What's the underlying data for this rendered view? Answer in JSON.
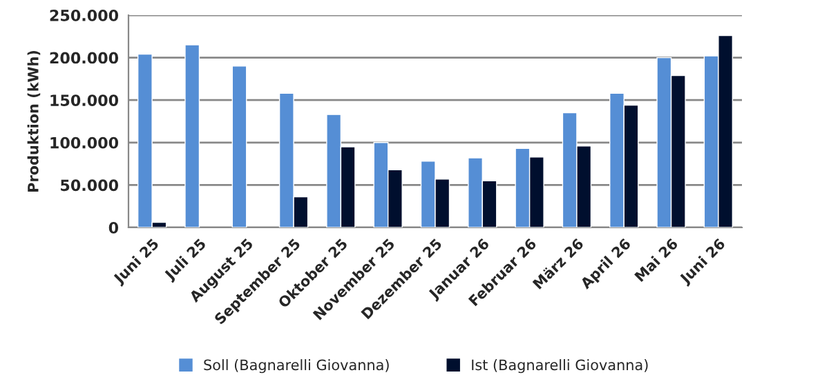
{
  "chart_data": {
    "type": "bar",
    "ylabel": "Produktion (kWh)",
    "categories": [
      "Juni 25",
      "Juli 25",
      "August 25",
      "September 25",
      "Oktober 25",
      "November 25",
      "Dezember 25",
      "Januar 26",
      "Februar 26",
      "März 26",
      "April 26",
      "Mai 26",
      "Juni 26"
    ],
    "series": [
      {
        "name": "Soll (Bagnarelli Giovanna)",
        "color": "#558ed5",
        "values": [
          204000,
          215000,
          190000,
          158000,
          133000,
          100000,
          78000,
          82000,
          93000,
          135000,
          158000,
          200000,
          202000
        ]
      },
      {
        "name": "Ist (Bagnarelli Giovanna)",
        "color": "#000f2e",
        "values": [
          6000,
          null,
          null,
          36000,
          95000,
          68000,
          57000,
          55000,
          83000,
          96000,
          144000,
          179000,
          226000
        ]
      }
    ],
    "ylim": [
      0,
      250000
    ],
    "yticks": [
      {
        "value": 0,
        "label": "0"
      },
      {
        "value": 50000,
        "label": "50.000"
      },
      {
        "value": 100000,
        "label": "100.000"
      },
      {
        "value": 150000,
        "label": "150.000"
      },
      {
        "value": 200000,
        "label": "200.000"
      },
      {
        "value": 250000,
        "label": "250.000"
      }
    ],
    "grid": "y",
    "legend": "bottom"
  }
}
